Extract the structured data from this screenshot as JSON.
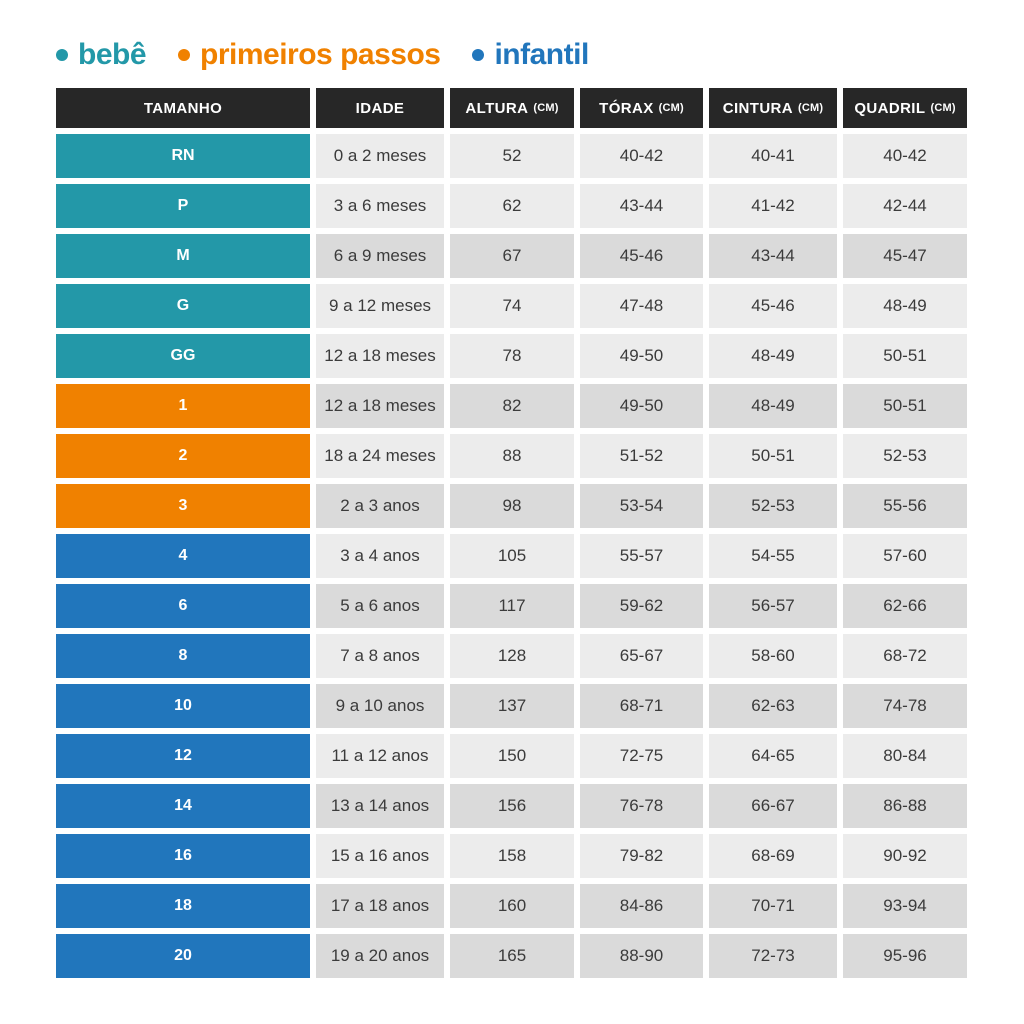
{
  "colors": {
    "bebe": "#2398A8",
    "primeiros_passos": "#F08100",
    "infantil": "#2176BC",
    "header_bg": "#272727",
    "cell_light": "#ECECEC",
    "cell_dark": "#DADADA",
    "cell_text": "#3B3B3B",
    "background": "#FFFFFF"
  },
  "legend": {
    "items": [
      {
        "label": "bebê",
        "color": "#2398A8"
      },
      {
        "label": "primeiros passos",
        "color": "#F08100"
      },
      {
        "label": "infantil",
        "color": "#2176BC"
      }
    ]
  },
  "chart_data": {
    "type": "table",
    "title": "",
    "columns": [
      {
        "label": "TAMANHO",
        "unit": ""
      },
      {
        "label": "IDADE",
        "unit": ""
      },
      {
        "label": "ALTURA",
        "unit": "(CM)"
      },
      {
        "label": "TÓRAX",
        "unit": "(CM)"
      },
      {
        "label": "CINTURA",
        "unit": "(CM)"
      },
      {
        "label": "QUADRIL",
        "unit": "(CM)"
      }
    ],
    "rows": [
      {
        "size": "RN",
        "group": "bebe",
        "shade": "light",
        "idade": "0 a 2 meses",
        "altura": "52",
        "torax": "40-42",
        "cintura": "40-41",
        "quadril": "40-42"
      },
      {
        "size": "P",
        "group": "bebe",
        "shade": "light",
        "idade": "3 a 6 meses",
        "altura": "62",
        "torax": "43-44",
        "cintura": "41-42",
        "quadril": "42-44"
      },
      {
        "size": "M",
        "group": "bebe",
        "shade": "dark",
        "idade": "6 a 9 meses",
        "altura": "67",
        "torax": "45-46",
        "cintura": "43-44",
        "quadril": "45-47"
      },
      {
        "size": "G",
        "group": "bebe",
        "shade": "light",
        "idade": "9 a 12 meses",
        "altura": "74",
        "torax": "47-48",
        "cintura": "45-46",
        "quadril": "48-49"
      },
      {
        "size": "GG",
        "group": "bebe",
        "shade": "light",
        "idade": "12 a 18 meses",
        "altura": "78",
        "torax": "49-50",
        "cintura": "48-49",
        "quadril": "50-51"
      },
      {
        "size": "1",
        "group": "primeiros_passos",
        "shade": "dark",
        "idade": "12 a 18 meses",
        "altura": "82",
        "torax": "49-50",
        "cintura": "48-49",
        "quadril": "50-51"
      },
      {
        "size": "2",
        "group": "primeiros_passos",
        "shade": "light",
        "idade": "18 a 24 meses",
        "altura": "88",
        "torax": "51-52",
        "cintura": "50-51",
        "quadril": "52-53"
      },
      {
        "size": "3",
        "group": "primeiros_passos",
        "shade": "dark",
        "idade": "2 a 3 anos",
        "altura": "98",
        "torax": "53-54",
        "cintura": "52-53",
        "quadril": "55-56"
      },
      {
        "size": "4",
        "group": "infantil",
        "shade": "light",
        "idade": "3 a 4 anos",
        "altura": "105",
        "torax": "55-57",
        "cintura": "54-55",
        "quadril": "57-60"
      },
      {
        "size": "6",
        "group": "infantil",
        "shade": "dark",
        "idade": "5 a 6 anos",
        "altura": "117",
        "torax": "59-62",
        "cintura": "56-57",
        "quadril": "62-66"
      },
      {
        "size": "8",
        "group": "infantil",
        "shade": "light",
        "idade": "7 a 8 anos",
        "altura": "128",
        "torax": "65-67",
        "cintura": "58-60",
        "quadril": "68-72"
      },
      {
        "size": "10",
        "group": "infantil",
        "shade": "dark",
        "idade": "9 a 10 anos",
        "altura": "137",
        "torax": "68-71",
        "cintura": "62-63",
        "quadril": "74-78"
      },
      {
        "size": "12",
        "group": "infantil",
        "shade": "light",
        "idade": "11 a 12 anos",
        "altura": "150",
        "torax": "72-75",
        "cintura": "64-65",
        "quadril": "80-84"
      },
      {
        "size": "14",
        "group": "infantil",
        "shade": "dark",
        "idade": "13 a 14 anos",
        "altura": "156",
        "torax": "76-78",
        "cintura": "66-67",
        "quadril": "86-88"
      },
      {
        "size": "16",
        "group": "infantil",
        "shade": "light",
        "idade": "15 a 16 anos",
        "altura": "158",
        "torax": "79-82",
        "cintura": "68-69",
        "quadril": "90-92"
      },
      {
        "size": "18",
        "group": "infantil",
        "shade": "dark",
        "idade": "17 a 18 anos",
        "altura": "160",
        "torax": "84-86",
        "cintura": "70-71",
        "quadril": "93-94"
      },
      {
        "size": "20",
        "group": "infantil",
        "shade": "dark",
        "idade": "19 a 20 anos",
        "altura": "165",
        "torax": "88-90",
        "cintura": "72-73",
        "quadril": "95-96"
      }
    ]
  }
}
